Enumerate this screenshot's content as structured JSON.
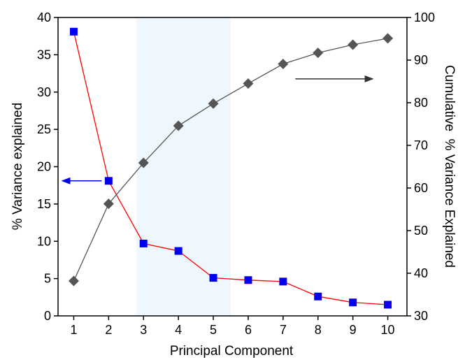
{
  "chart_data": {
    "type": "line",
    "xlabel": "Principal Component",
    "ylabel_left": "% Variance explained",
    "ylabel_right": "Cumulative  % Variance Explained",
    "x": [
      1,
      2,
      3,
      4,
      5,
      6,
      7,
      8,
      9,
      10
    ],
    "x_ticks": [
      "1",
      "2",
      "3",
      "4",
      "5",
      "6",
      "7",
      "8",
      "9",
      "10"
    ],
    "xlim": [
      0.55,
      10.55
    ],
    "ylim_left": [
      0,
      40
    ],
    "ylim_right": [
      30,
      100
    ],
    "y_ticks_left": [
      "0",
      "5",
      "10",
      "15",
      "20",
      "25",
      "30",
      "35",
      "40"
    ],
    "y_ticks_right": [
      "30",
      "40",
      "50",
      "60",
      "70",
      "80",
      "90",
      "100"
    ],
    "grid": false,
    "highlight_band": {
      "x_from": 2.8,
      "x_to": 5.5,
      "color": "#eef7fd"
    },
    "series": [
      {
        "axis": "left",
        "marker": "square",
        "line_color": "#ff0000",
        "marker_color": "#0000ee",
        "values": [
          38.1,
          18.1,
          9.7,
          8.7,
          5.1,
          4.8,
          4.6,
          2.6,
          1.8,
          1.5
        ]
      },
      {
        "axis": "right",
        "marker": "diamond",
        "line_color": "#555555",
        "marker_color": "#555555",
        "values": [
          38.2,
          56.3,
          65.9,
          74.6,
          79.8,
          84.5,
          89.1,
          91.7,
          93.6,
          95.1
        ]
      }
    ],
    "annotations": [
      {
        "type": "arrow",
        "direction": "left",
        "color": "#0000ee",
        "x_from": 1.8,
        "x_to": 0.64,
        "y_left": 18.1
      },
      {
        "type": "arrow",
        "direction": "right",
        "color": "#333333",
        "x_from": 7.35,
        "x_to": 9.6,
        "y_right": 85.6
      }
    ]
  }
}
